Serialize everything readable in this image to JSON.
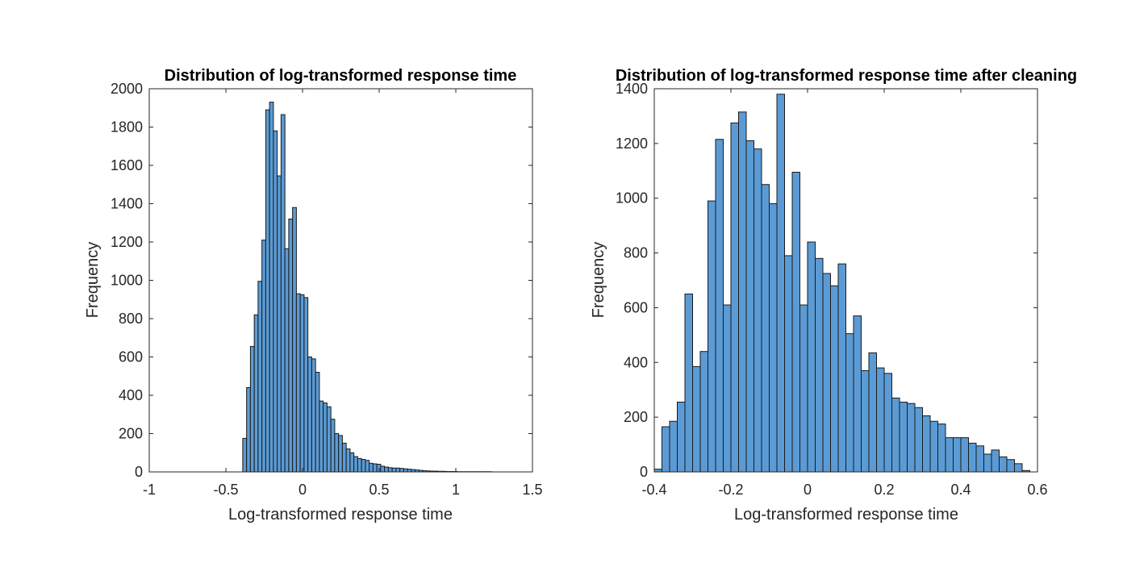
{
  "chart_data": [
    {
      "type": "bar",
      "title": "Distribution of log-transformed response time",
      "xlabel": "Log-transformed response time",
      "ylabel": "Frequency",
      "xlim": [
        -1,
        1.5
      ],
      "ylim": [
        0,
        2000
      ],
      "xticks": [
        -1,
        -0.5,
        0,
        0.5,
        1,
        1.5
      ],
      "xtick_labels": [
        "-1",
        "-0.5",
        "0",
        "0.5",
        "1",
        "1.5"
      ],
      "yticks": [
        0,
        200,
        400,
        600,
        800,
        1000,
        1200,
        1400,
        1600,
        1800,
        2000
      ],
      "ytick_labels": [
        "0",
        "200",
        "400",
        "600",
        "800",
        "1000",
        "1200",
        "1400",
        "1600",
        "1800",
        "2000"
      ],
      "bin_start": -0.39,
      "bin_width": 0.025,
      "values": [
        175,
        440,
        655,
        820,
        995,
        1210,
        1890,
        1930,
        1780,
        1545,
        1865,
        1165,
        1320,
        1380,
        930,
        925,
        910,
        600,
        590,
        520,
        370,
        360,
        340,
        275,
        200,
        190,
        150,
        120,
        100,
        80,
        70,
        65,
        60,
        45,
        42,
        40,
        30,
        25,
        22,
        20,
        20,
        18,
        16,
        14,
        12,
        10,
        8,
        6,
        5,
        4,
        4,
        3,
        3,
        2,
        2,
        2,
        1,
        1,
        1,
        1,
        1,
        1,
        1,
        1,
        1
      ],
      "grid": false
    },
    {
      "type": "bar",
      "title": "Distribution of log-transformed response time after cleaning",
      "xlabel": "Log-transformed response time",
      "ylabel": "Frequency",
      "xlim": [
        -0.4,
        0.6
      ],
      "ylim": [
        0,
        1400
      ],
      "xticks": [
        -0.4,
        -0.2,
        0,
        0.2,
        0.4,
        0.6
      ],
      "xtick_labels": [
        "-0.4",
        "-0.2",
        "0",
        "0.2",
        "0.4",
        "0.6"
      ],
      "yticks": [
        0,
        200,
        400,
        600,
        800,
        1000,
        1200,
        1400
      ],
      "ytick_labels": [
        "0",
        "200",
        "400",
        "600",
        "800",
        "1000",
        "1200",
        "1400"
      ],
      "bin_start": -0.4,
      "bin_width": 0.02,
      "values": [
        10,
        165,
        185,
        255,
        650,
        385,
        440,
        990,
        1215,
        610,
        1275,
        1315,
        1210,
        1180,
        1050,
        980,
        1380,
        790,
        1095,
        610,
        840,
        780,
        725,
        680,
        760,
        505,
        570,
        370,
        435,
        380,
        360,
        270,
        255,
        250,
        235,
        205,
        185,
        175,
        125,
        125,
        125,
        105,
        95,
        65,
        80,
        55,
        45,
        30,
        5
      ],
      "grid": false
    }
  ]
}
